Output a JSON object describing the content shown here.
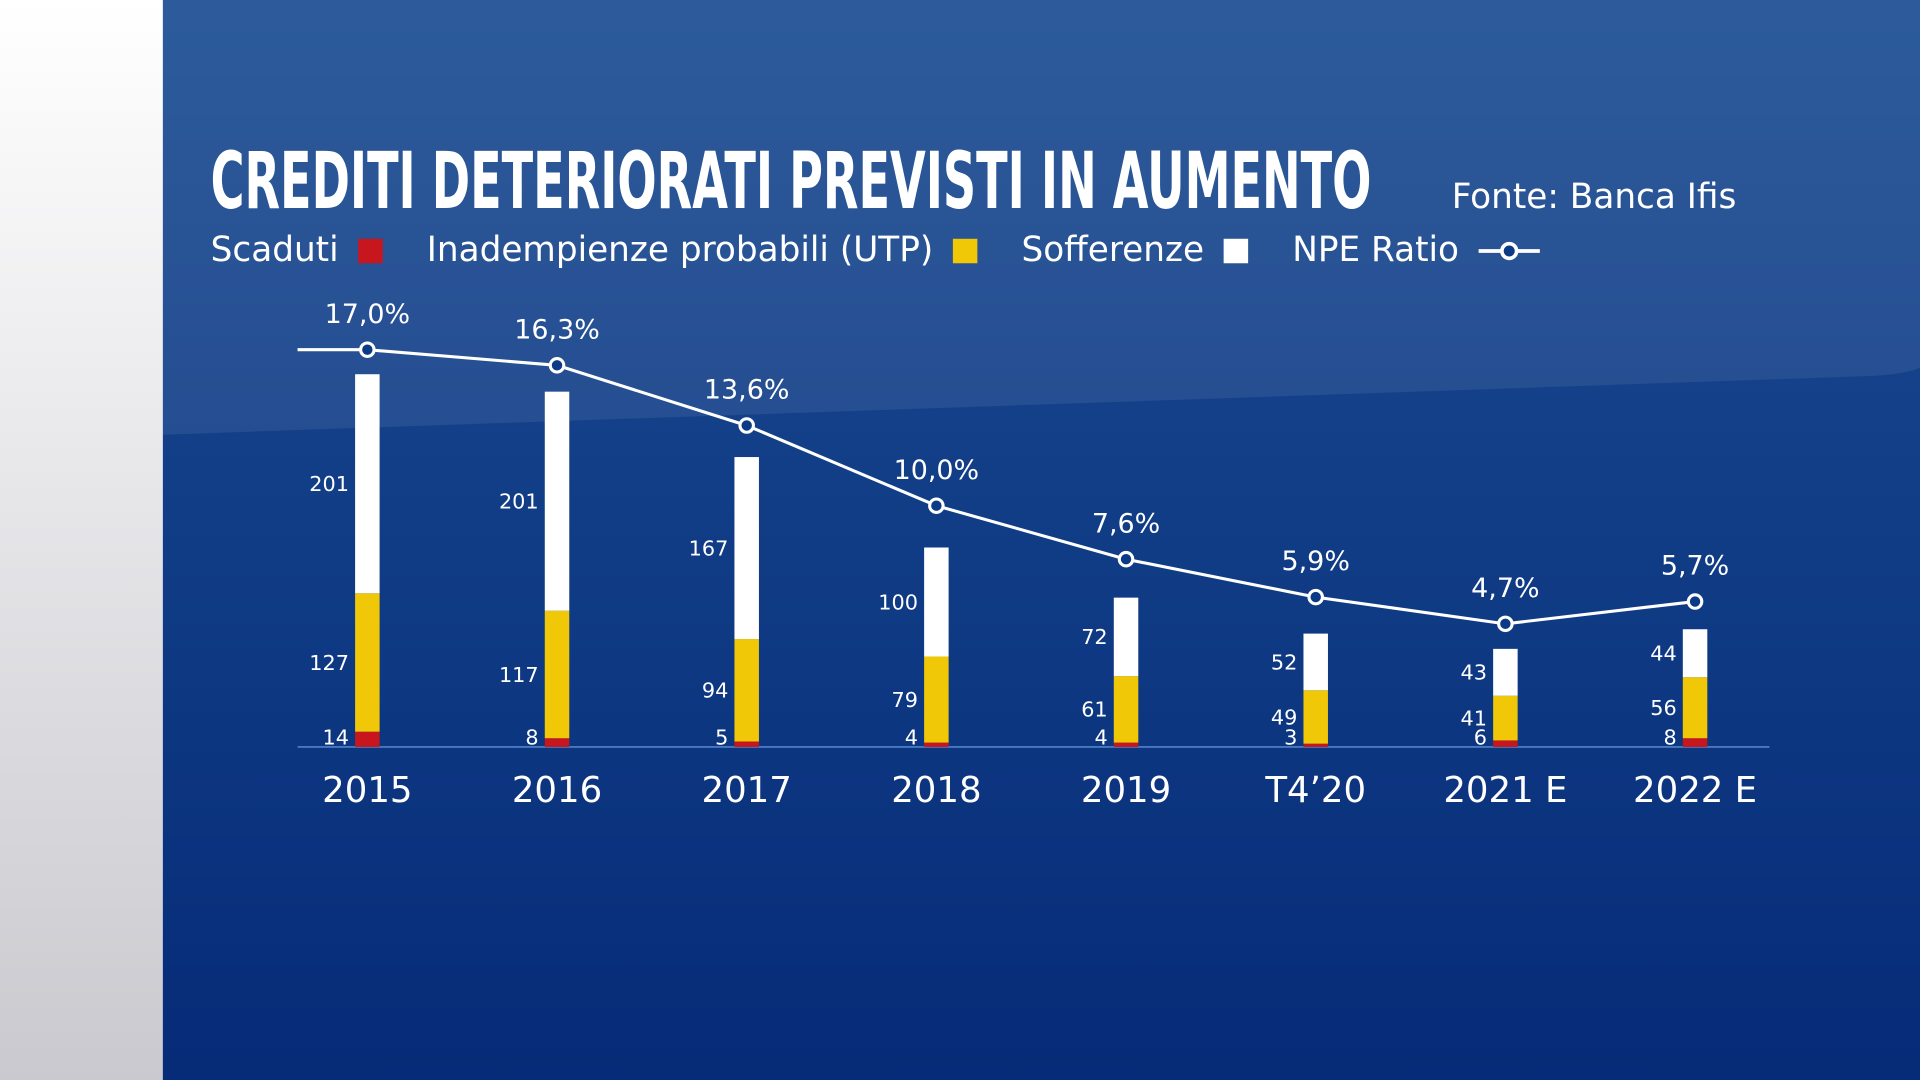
{
  "chart_data": {
    "type": "bar",
    "stacked": true,
    "title": "CREDITI DETERIORATI PREVISTI IN AUMENTO",
    "source": "Fonte: Banca Ifis",
    "categories": [
      "2015",
      "2016",
      "2017",
      "2018",
      "2019",
      "T4’20",
      "2021 E",
      "2022 E"
    ],
    "series": [
      {
        "name": "Scaduti",
        "color": "#c8161e",
        "values": [
          14,
          8,
          5,
          4,
          4,
          3,
          6,
          8
        ]
      },
      {
        "name": "Inadempienze probabili (UTP)",
        "color": "#f0c808",
        "values": [
          127,
          117,
          94,
          79,
          61,
          49,
          41,
          56
        ]
      },
      {
        "name": "Sofferenze",
        "color": "#ffffff",
        "values": [
          201,
          201,
          167,
          100,
          72,
          52,
          43,
          44
        ]
      },
      {
        "name": "NPE Ratio",
        "type": "line",
        "color": "#ffffff",
        "values": [
          17.0,
          16.3,
          13.6,
          10.0,
          7.6,
          5.9,
          4.7,
          5.7
        ],
        "value_labels": [
          "17,0%",
          "16,3%",
          "13,6%",
          "10,0%",
          "7,6%",
          "5,9%",
          "4,7%",
          "5,7%"
        ]
      }
    ]
  }
}
